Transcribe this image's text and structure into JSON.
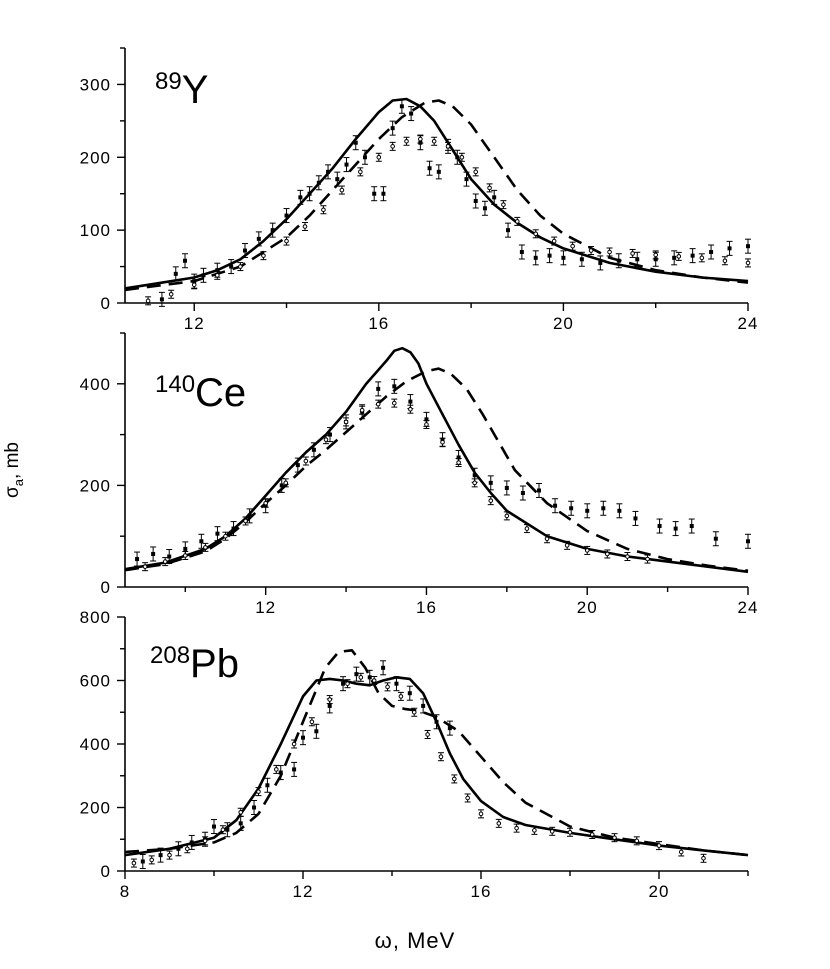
{
  "chart_data": [
    {
      "type": "line",
      "nucleus": {
        "mass": "89",
        "symbol": "Y"
      },
      "xlim": [
        10.5,
        24
      ],
      "ylim": [
        0,
        350
      ],
      "xticks": [
        12,
        16,
        20,
        24
      ],
      "yticks": [
        0,
        100,
        200,
        300
      ],
      "series": [
        {
          "name": "theory-solid",
          "style": "solid",
          "x": [
            10.5,
            11,
            12,
            12.5,
            13,
            13.5,
            14,
            14.5,
            15,
            15.5,
            16,
            16.3,
            16.6,
            16.9,
            17.2,
            17.6,
            18,
            18.5,
            19,
            19.5,
            20,
            21,
            22,
            23,
            24
          ],
          "y": [
            20,
            25,
            35,
            45,
            60,
            85,
            115,
            150,
            185,
            225,
            262,
            278,
            280,
            270,
            250,
            210,
            170,
            135,
            110,
            90,
            75,
            55,
            43,
            35,
            30
          ]
        },
        {
          "name": "theory-dashed",
          "style": "dashed",
          "x": [
            10.5,
            12,
            13,
            14,
            14.5,
            15,
            15.5,
            16,
            16.5,
            17,
            17.3,
            17.6,
            18,
            18.5,
            19,
            19.5,
            20,
            21,
            22,
            23,
            24
          ],
          "y": [
            18,
            30,
            50,
            90,
            120,
            155,
            190,
            225,
            255,
            275,
            278,
            270,
            245,
            200,
            155,
            120,
            95,
            62,
            45,
            35,
            28
          ]
        },
        {
          "name": "exp-filled",
          "style": "points",
          "x": [
            11.3,
            11.6,
            11.8,
            12,
            12.2,
            12.5,
            12.8,
            13.1,
            13.4,
            13.7,
            14,
            14.3,
            14.5,
            14.7,
            14.9,
            15.1,
            15.3,
            15.5,
            15.7,
            15.9,
            16.1,
            16.3,
            16.5,
            16.7,
            16.9,
            17.1,
            17.3,
            17.5,
            17.7,
            17.9,
            18.1,
            18.3,
            18.5,
            18.8,
            19.1,
            19.4,
            19.7,
            20,
            20.4,
            20.8,
            21.2,
            21.6,
            22,
            22.4,
            22.8,
            23.2,
            23.6,
            24
          ],
          "y": [
            5,
            40,
            58,
            30,
            38,
            45,
            50,
            72,
            88,
            100,
            120,
            145,
            150,
            165,
            180,
            170,
            190,
            220,
            200,
            150,
            150,
            240,
            270,
            260,
            220,
            185,
            180,
            215,
            200,
            170,
            140,
            130,
            145,
            100,
            70,
            62,
            65,
            62,
            60,
            55,
            58,
            60,
            60,
            62,
            65,
            70,
            75,
            78
          ]
        },
        {
          "name": "exp-open",
          "style": "points",
          "x": [
            11,
            11.5,
            12,
            12.5,
            13,
            13.5,
            14,
            14.4,
            14.8,
            15.2,
            15.6,
            16,
            16.3,
            16.6,
            16.9,
            17.2,
            17.5,
            17.8,
            18.1,
            18.4,
            18.7,
            19,
            19.4,
            19.8,
            20.2,
            20.6,
            21,
            21.5,
            22,
            22.5,
            23,
            23.5,
            24
          ],
          "y": [
            3,
            12,
            25,
            38,
            50,
            65,
            85,
            105,
            128,
            155,
            180,
            200,
            215,
            222,
            225,
            222,
            215,
            200,
            180,
            158,
            135,
            112,
            95,
            85,
            78,
            72,
            70,
            68,
            66,
            64,
            62,
            58,
            55
          ]
        }
      ]
    },
    {
      "type": "line",
      "nucleus": {
        "mass": "140",
        "symbol": "Ce"
      },
      "xlim": [
        8.5,
        24
      ],
      "ylim": [
        0,
        500
      ],
      "xticks": [
        12,
        16,
        20,
        24
      ],
      "yticks": [
        0,
        200,
        400
      ],
      "series": [
        {
          "name": "theory-solid",
          "style": "solid",
          "x": [
            8.5,
            9.5,
            10.5,
            11,
            11.5,
            12,
            12.5,
            13,
            13.5,
            14,
            14.5,
            15,
            15.2,
            15.4,
            15.6,
            15.8,
            16,
            16.4,
            16.8,
            17.2,
            17.6,
            18,
            19,
            20,
            21,
            22,
            23,
            24
          ],
          "y": [
            35,
            48,
            75,
            100,
            135,
            180,
            225,
            265,
            300,
            345,
            400,
            445,
            465,
            470,
            462,
            440,
            400,
            340,
            280,
            225,
            185,
            150,
            100,
            75,
            60,
            50,
            40,
            30
          ]
        },
        {
          "name": "theory-dashed",
          "style": "dashed",
          "x": [
            8.5,
            9.5,
            10.5,
            11,
            11.5,
            12,
            12.5,
            13,
            13.5,
            14,
            14.5,
            15,
            15.5,
            16,
            16.3,
            16.6,
            17,
            17.4,
            17.8,
            18.2,
            19,
            20,
            21,
            22,
            23,
            24
          ],
          "y": [
            33,
            45,
            70,
            95,
            128,
            165,
            200,
            238,
            270,
            305,
            340,
            375,
            405,
            425,
            430,
            420,
            390,
            340,
            285,
            230,
            165,
            110,
            75,
            55,
            42,
            32
          ]
        },
        {
          "name": "exp-filled",
          "style": "points",
          "x": [
            8.8,
            9.2,
            9.6,
            10,
            10.4,
            10.8,
            11.2,
            11.6,
            12,
            12.4,
            12.8,
            13.2,
            13.6,
            14,
            14.4,
            14.8,
            15.2,
            15.6,
            16,
            16.4,
            16.8,
            17.2,
            17.6,
            18,
            18.4,
            18.8,
            19.2,
            19.6,
            20,
            20.4,
            20.8,
            21.2,
            21.8,
            22.2,
            22.6,
            23.2,
            24
          ],
          "y": [
            55,
            65,
            60,
            75,
            90,
            105,
            115,
            140,
            160,
            200,
            240,
            270,
            300,
            325,
            345,
            390,
            395,
            365,
            330,
            290,
            255,
            220,
            205,
            195,
            185,
            190,
            160,
            155,
            150,
            155,
            150,
            135,
            120,
            115,
            120,
            95,
            90
          ]
        },
        {
          "name": "exp-open",
          "style": "points",
          "x": [
            9,
            9.5,
            10,
            10.5,
            11,
            11.5,
            12,
            12.5,
            13,
            13.5,
            14,
            14.4,
            14.8,
            15.2,
            15.6,
            16,
            16.4,
            16.8,
            17.2,
            17.6,
            18,
            18.5,
            19,
            19.5,
            20,
            20.5,
            21,
            21.5
          ],
          "y": [
            40,
            50,
            62,
            78,
            100,
            130,
            165,
            205,
            248,
            290,
            325,
            348,
            360,
            362,
            350,
            320,
            285,
            245,
            205,
            170,
            140,
            115,
            95,
            82,
            72,
            65,
            60,
            55
          ]
        }
      ]
    },
    {
      "type": "line",
      "nucleus": {
        "mass": "208",
        "symbol": "Pb"
      },
      "xlim": [
        8,
        22
      ],
      "ylim": [
        0,
        800
      ],
      "xticks": [
        8,
        12,
        16,
        20
      ],
      "yticks": [
        0,
        200,
        400,
        600,
        800
      ],
      "xlabel": "ω, MeV",
      "series": [
        {
          "name": "theory-solid",
          "style": "solid",
          "x": [
            8,
            9,
            10,
            10.5,
            11,
            11.5,
            12,
            12.3,
            12.6,
            12.9,
            13.2,
            13.5,
            13.8,
            14.1,
            14.4,
            14.7,
            15,
            15.3,
            15.6,
            16,
            16.5,
            17,
            18,
            19,
            20,
            21,
            22
          ],
          "y": [
            50,
            70,
            105,
            160,
            260,
            400,
            550,
            600,
            605,
            600,
            590,
            585,
            600,
            610,
            605,
            560,
            470,
            370,
            290,
            220,
            170,
            145,
            120,
            100,
            80,
            65,
            50
          ]
        },
        {
          "name": "theory-dashed",
          "style": "dashed",
          "x": [
            8,
            9,
            10,
            10.5,
            11,
            11.5,
            12,
            12.5,
            12.8,
            13.1,
            13.4,
            13.7,
            14,
            14.3,
            14.6,
            15,
            15.5,
            16,
            16.5,
            17,
            18,
            19,
            20,
            21,
            22
          ],
          "y": [
            60,
            70,
            90,
            120,
            180,
            300,
            470,
            640,
            690,
            695,
            640,
            560,
            520,
            510,
            505,
            485,
            440,
            360,
            280,
            215,
            140,
            105,
            85,
            65,
            50
          ]
        },
        {
          "name": "exp-filled",
          "style": "points",
          "x": [
            8.4,
            8.8,
            9.2,
            9.5,
            9.8,
            10,
            10.3,
            10.6,
            10.9,
            11.2,
            11.5,
            11.8,
            12,
            12.3,
            12.6,
            12.9,
            13.2,
            13.5,
            13.8,
            14.1,
            14.4,
            14.7,
            15,
            15.3
          ],
          "y": [
            30,
            50,
            70,
            90,
            100,
            140,
            130,
            150,
            200,
            270,
            310,
            320,
            420,
            440,
            520,
            590,
            620,
            610,
            640,
            590,
            560,
            520,
            470,
            450
          ]
        },
        {
          "name": "exp-open",
          "style": "points",
          "x": [
            8.2,
            8.6,
            9,
            9.4,
            9.8,
            10.2,
            10.6,
            11,
            11.4,
            11.8,
            12.2,
            12.6,
            13,
            13.3,
            13.6,
            13.9,
            14.2,
            14.5,
            14.8,
            15.1,
            15.4,
            15.7,
            16,
            16.4,
            16.8,
            17.2,
            17.6,
            18,
            18.5,
            19,
            19.5,
            20,
            20.5,
            21
          ],
          "y": [
            25,
            35,
            50,
            70,
            95,
            130,
            185,
            250,
            320,
            400,
            470,
            540,
            590,
            610,
            600,
            580,
            550,
            500,
            430,
            360,
            290,
            230,
            180,
            150,
            135,
            128,
            125,
            122,
            115,
            105,
            95,
            80,
            60,
            40
          ]
        }
      ]
    }
  ],
  "y_axis_title": {
    "symbol": "σ",
    "subscript": "a",
    "unit": ", mb"
  }
}
